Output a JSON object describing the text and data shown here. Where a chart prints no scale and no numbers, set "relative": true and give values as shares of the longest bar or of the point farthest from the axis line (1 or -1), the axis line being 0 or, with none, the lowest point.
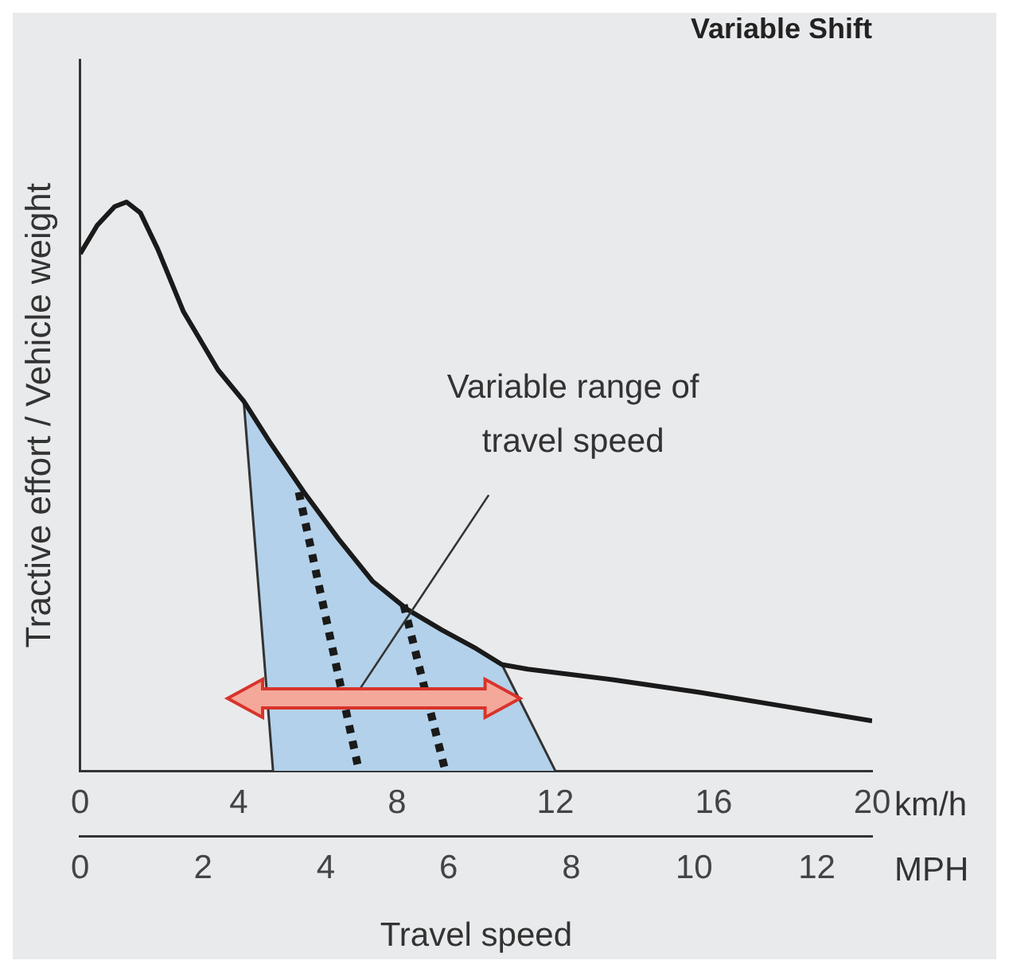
{
  "chart_data": {
    "type": "line",
    "title": "Variable Shift",
    "ylabel": "Tractive effort / Vehicle weight",
    "xlabel": "km/h",
    "x2label": "MPH",
    "relative": true,
    "xlim": [
      0,
      20
    ],
    "xticks": [
      0,
      4,
      8,
      12,
      16,
      20
    ],
    "x2lim": [
      0,
      12.9
    ],
    "x2ticks": [
      0,
      2,
      4,
      6,
      8,
      10,
      12
    ],
    "series": [
      {
        "type": "area",
        "color": "#b3d1ea",
        "x": [
          4.87,
          4.13,
          4.78,
          5.65,
          6.52,
          7.39,
          8.26,
          9.13,
          10.0,
          10.65,
          12.0
        ],
        "values": [
          0,
          0.65,
          0.579,
          0.49,
          0.408,
          0.333,
          0.284,
          0.248,
          0.215,
          0.187,
          0
        ]
      },
      {
        "type": "line",
        "color": "#1a1a1a",
        "x": [
          0,
          0.43,
          0.87,
          1.17,
          1.52,
          1.96,
          2.61,
          3.48,
          4.13,
          4.78,
          5.65,
          6.52,
          7.39,
          8.26,
          9.13,
          10.0,
          10.65,
          11.3,
          13.48,
          15.65,
          17.83,
          20
        ],
        "values": [
          0.909,
          0.959,
          0.992,
          1,
          0.981,
          0.917,
          0.807,
          0.705,
          0.65,
          0.579,
          0.49,
          0.408,
          0.333,
          0.284,
          0.248,
          0.215,
          0.187,
          0.179,
          0.16,
          0.138,
          0.113,
          0.088
        ]
      },
      {
        "type": "line",
        "line_style": "dotted",
        "color": "#1a1a1a",
        "x": [
          5.52,
          7.04
        ],
        "values": [
          0.49,
          0
        ]
      },
      {
        "type": "line",
        "line_style": "dotted",
        "color": "#1a1a1a",
        "x": [
          8.17,
          9.22
        ],
        "values": [
          0.292,
          0
        ]
      }
    ],
    "annotations": [
      {
        "text": "Variable range of travel speed",
        "x": 6.9,
        "y": 0.127
      },
      "Travel speed"
    ]
  }
}
